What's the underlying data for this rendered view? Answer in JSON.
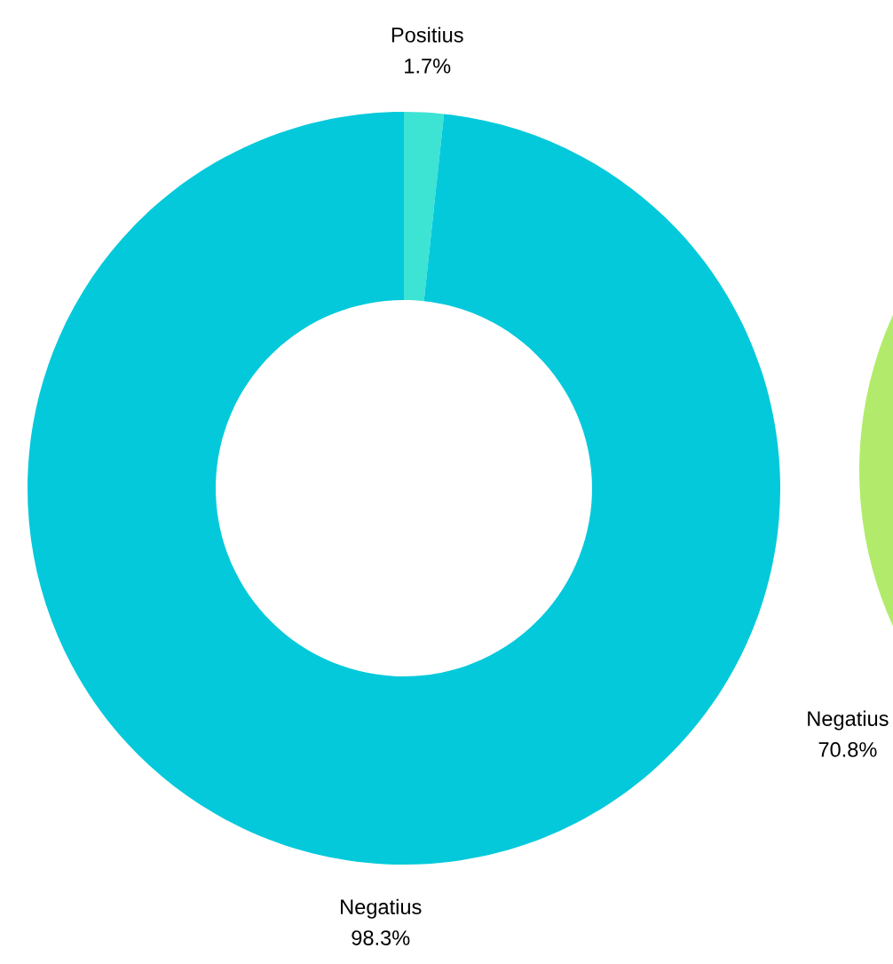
{
  "chart_data": [
    {
      "type": "donut",
      "categories": [
        "Positius",
        "Negatius"
      ],
      "values": [
        1.7,
        98.3
      ],
      "value_labels": [
        "1.7%",
        "98.3%"
      ],
      "colors": [
        "#3de3d3",
        "#03c9db"
      ]
    },
    {
      "type": "pie",
      "categories": [
        null,
        "Negatius"
      ],
      "values": [
        null,
        70.8
      ],
      "value_labels": [
        null,
        "70.8%"
      ],
      "colors": [
        "#7fd8a8",
        "#b2eb6b"
      ]
    }
  ]
}
